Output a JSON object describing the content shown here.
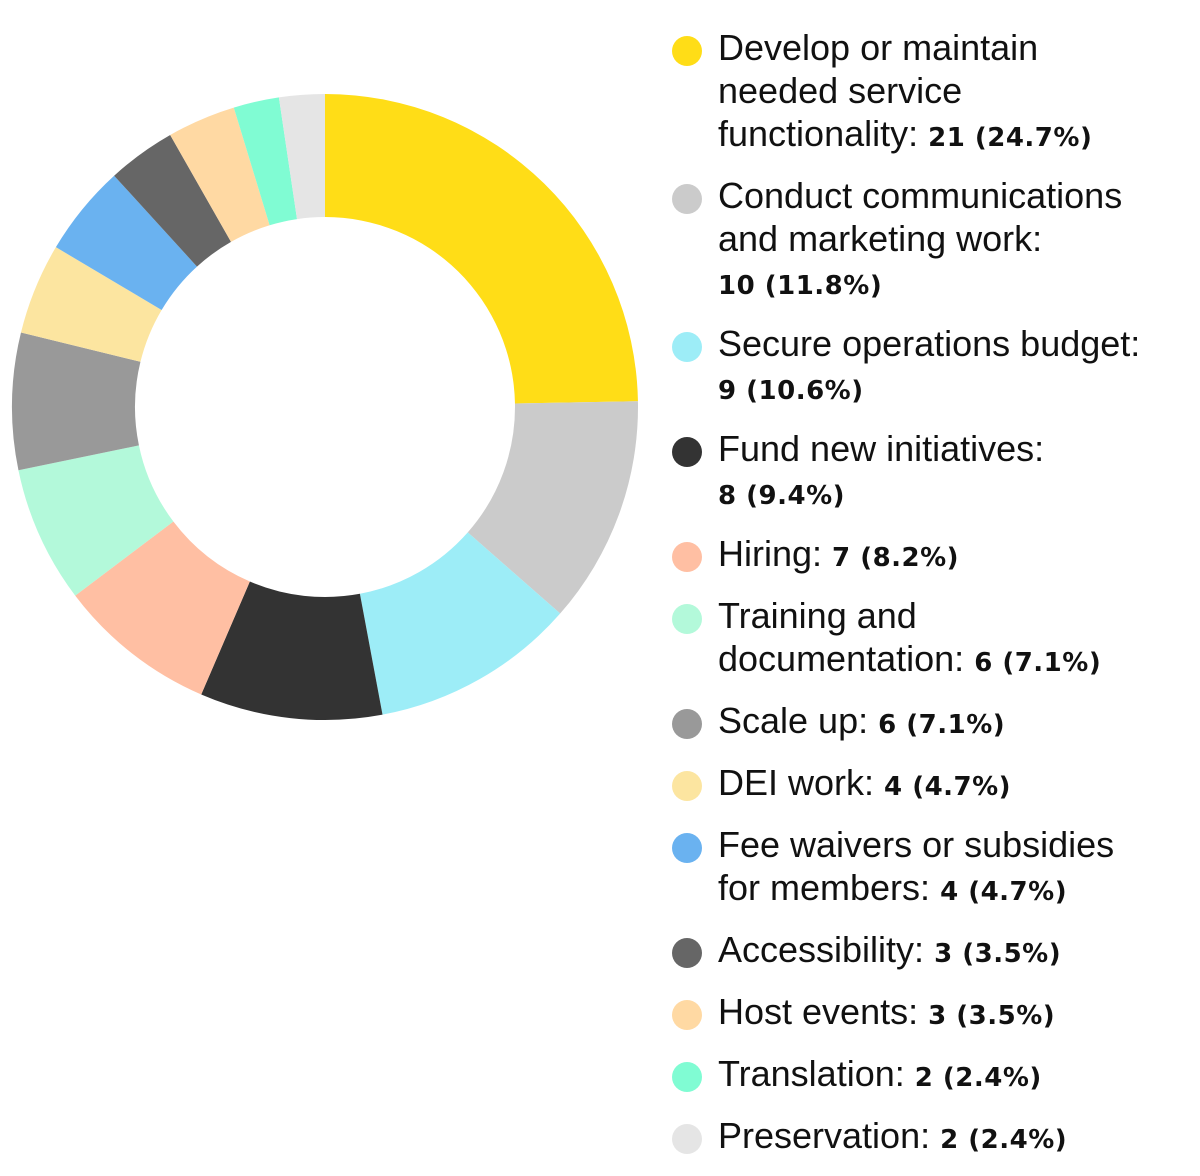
{
  "chart_data": {
    "type": "pie",
    "variant": "donut",
    "legend_position": "right",
    "slices": [
      {
        "label": "Develop or maintain needed service functionality:",
        "value": 21,
        "value_text": "21 (24.7%)",
        "color": "#FFDD17"
      },
      {
        "label": "Conduct communications and marketing work:",
        "value": 10,
        "value_text": "10 (11.8%)",
        "color": "#CBCBCB"
      },
      {
        "label": "Secure operations budget:",
        "value": 9,
        "value_text": "9 (10.6%)",
        "color": "#9DEDF7"
      },
      {
        "label": "Fund new initiatives:",
        "value": 8,
        "value_text": "8 (9.4%)",
        "color": "#333333"
      },
      {
        "label": "Hiring:",
        "value": 7,
        "value_text": "7 (8.2%)",
        "color": "#FFBFA3"
      },
      {
        "label": "Training and documentation:",
        "value": 6,
        "value_text": "6 (7.1%)",
        "color": "#B3F9DA"
      },
      {
        "label": "Scale up:",
        "value": 6,
        "value_text": "6 (7.1%)",
        "color": "#999999"
      },
      {
        "label": "DEI work:",
        "value": 4,
        "value_text": "4 (4.7%)",
        "color": "#FCE5A0"
      },
      {
        "label": "Fee waivers or subsidies for members:",
        "value": 4,
        "value_text": "4 (4.7%)",
        "color": "#6AB2F0"
      },
      {
        "label": "Accessibility:",
        "value": 3,
        "value_text": "3 (3.5%)",
        "color": "#666666"
      },
      {
        "label": "Host events:",
        "value": 3,
        "value_text": "3 (3.5%)",
        "color": "#FFD9A3"
      },
      {
        "label": "Translation:",
        "value": 2,
        "value_text": "2 (2.4%)",
        "color": "#80FCD3"
      },
      {
        "label": "Preservation:",
        "value": 2,
        "value_text": "2 (2.4%)",
        "color": "#E5E5E5"
      }
    ]
  }
}
